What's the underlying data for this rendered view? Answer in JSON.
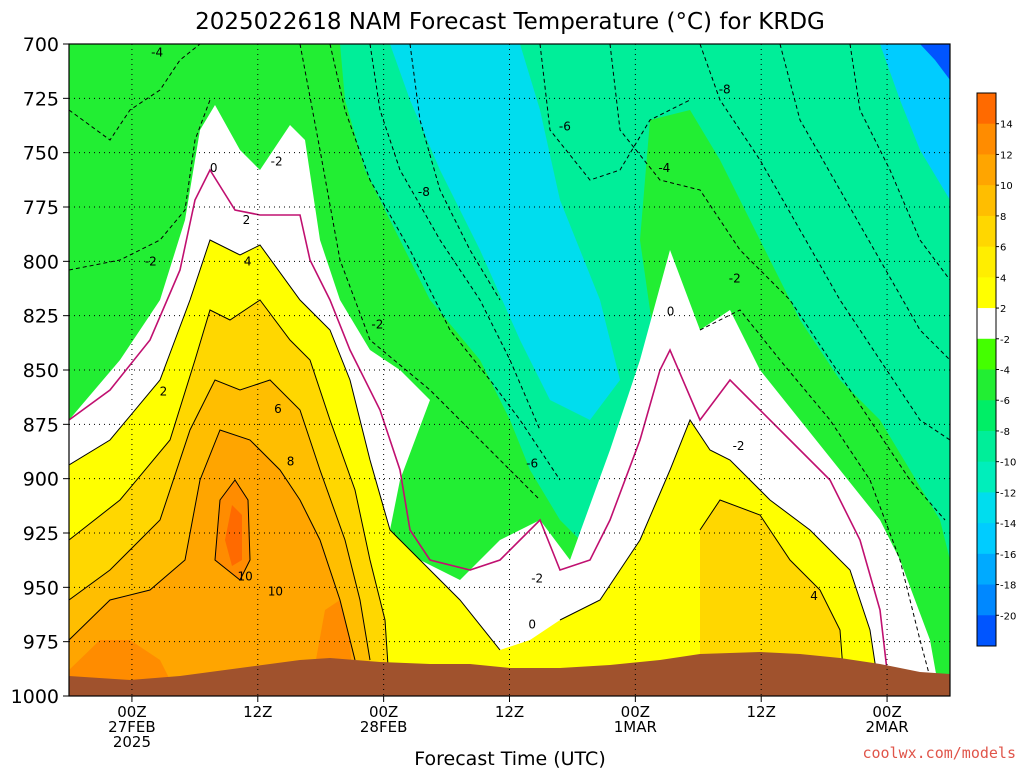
{
  "chart_data": {
    "type": "heatmap",
    "title": "2025022618 NAM Forecast Temperature (°C) for KRDG",
    "xlabel": "Forecast Time (UTC)",
    "y_ticks": [
      "700",
      "725",
      "750",
      "775",
      "800",
      "825",
      "850",
      "875",
      "900",
      "925",
      "950",
      "975",
      "1000"
    ],
    "y_range_hpa": [
      700,
      1000
    ],
    "x_range_hours": [
      -5,
      65
    ],
    "x_ticks": [
      {
        "hour": 0,
        "lines": [
          "00Z",
          "27FEB",
          "2025"
        ]
      },
      {
        "hour": 10,
        "lines": [
          "12Z"
        ]
      },
      {
        "hour": 20,
        "lines": [
          "00Z",
          "28FEB"
        ]
      },
      {
        "hour": 30,
        "lines": [
          "12Z"
        ]
      },
      {
        "hour": 40,
        "lines": [
          "00Z",
          "1MAR"
        ]
      },
      {
        "hour": 50,
        "lines": [
          "12Z"
        ]
      },
      {
        "hour": 60,
        "lines": [
          "00Z",
          "2MAR"
        ]
      }
    ],
    "grid": true,
    "legend": "right",
    "colorbar": {
      "labels": [
        "14",
        "12",
        "10",
        "8",
        "6",
        "4",
        "2",
        "-2",
        "-4",
        "-6",
        "-8",
        "-10",
        "-12",
        "-14",
        "-16",
        "-18",
        "-20"
      ],
      "colors": [
        "#ff6a00",
        "#ff8c00",
        "#ffa500",
        "#ffbe00",
        "#ffd700",
        "#ffee00",
        "#ffff00",
        "#ffffff",
        "#44ff00",
        "#22ee33",
        "#00ee66",
        "#00ee99",
        "#00eebb",
        "#00ddee",
        "#00ccff",
        "#00aaff",
        "#0088ff",
        "#0055ff"
      ]
    },
    "contour_labels": [
      {
        "text": "-4",
        "hour": 2,
        "hpa": 704
      },
      {
        "text": "-2",
        "hour": 1.5,
        "hpa": 800
      },
      {
        "text": "0",
        "hour": 6.5,
        "hpa": 757
      },
      {
        "text": "-2",
        "hour": 11.5,
        "hpa": 754
      },
      {
        "text": "2",
        "hour": 9.1,
        "hpa": 781
      },
      {
        "text": "4",
        "hour": 9.2,
        "hpa": 800
      },
      {
        "text": "2",
        "hour": 2.5,
        "hpa": 860
      },
      {
        "text": "6",
        "hour": 11.6,
        "hpa": 868
      },
      {
        "text": "8",
        "hour": 12.6,
        "hpa": 892
      },
      {
        "text": "10",
        "hour": 9.0,
        "hpa": 945
      },
      {
        "text": "10",
        "hour": 11.4,
        "hpa": 952
      },
      {
        "text": "-2",
        "hour": 19.5,
        "hpa": 829
      },
      {
        "text": "-8",
        "hour": 23.2,
        "hpa": 768
      },
      {
        "text": "-6",
        "hour": 34.4,
        "hpa": 738
      },
      {
        "text": "-4",
        "hour": 42.3,
        "hpa": 757
      },
      {
        "text": "-8",
        "hour": 47.1,
        "hpa": 721
      },
      {
        "text": "-6",
        "hour": 31.8,
        "hpa": 893
      },
      {
        "text": "0",
        "hour": 42.8,
        "hpa": 823
      },
      {
        "text": "-2",
        "hour": 47.9,
        "hpa": 808
      },
      {
        "text": "-2",
        "hour": 48.2,
        "hpa": 885
      },
      {
        "text": "-2",
        "hour": 32.2,
        "hpa": 946
      },
      {
        "text": "0",
        "hour": 31.8,
        "hpa": 967
      },
      {
        "text": "4",
        "hour": 54.2,
        "hpa": 954
      }
    ]
  },
  "credit": "coolwx.com/models"
}
